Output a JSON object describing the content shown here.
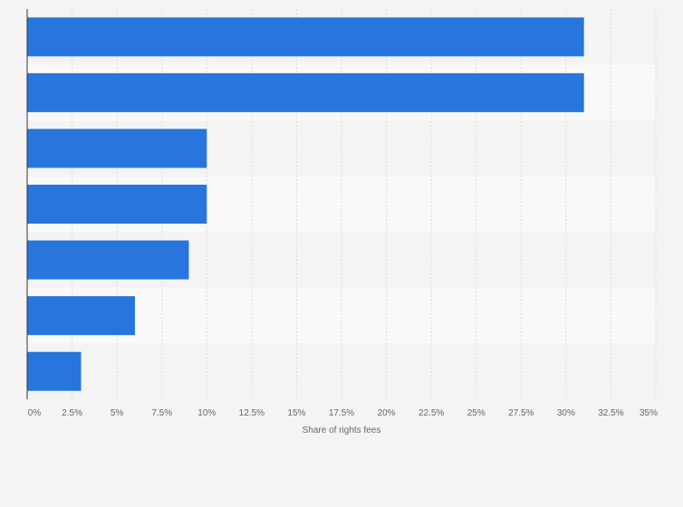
{
  "chart_data": {
    "type": "bar",
    "orientation": "horizontal",
    "categories": [
      "",
      "",
      "",
      "",
      "",
      "",
      ""
    ],
    "values": [
      31,
      31,
      10,
      10,
      9,
      6,
      3
    ],
    "xlabel": "Share of rights fees",
    "ylabel": "",
    "xlim": [
      0,
      35
    ],
    "x_ticks": [
      0,
      2.5,
      5,
      7.5,
      10,
      12.5,
      15,
      17.5,
      20,
      22.5,
      25,
      27.5,
      30,
      32.5,
      35
    ],
    "x_tick_labels": [
      "0%",
      "2.5%",
      "5%",
      "7.5%",
      "10%",
      "12.5%",
      "15%",
      "17.5%",
      "20%",
      "22.5%",
      "25%",
      "27.5%",
      "30%",
      "32.5%",
      "35%"
    ],
    "grid": true,
    "legend": "none",
    "colors": {
      "bar": "#2876dd",
      "band_light": "#f4f4f4",
      "band_lighter": "#f9f9f9",
      "grid": "#dddddd",
      "axis": "#333333",
      "text": "#666666"
    }
  }
}
